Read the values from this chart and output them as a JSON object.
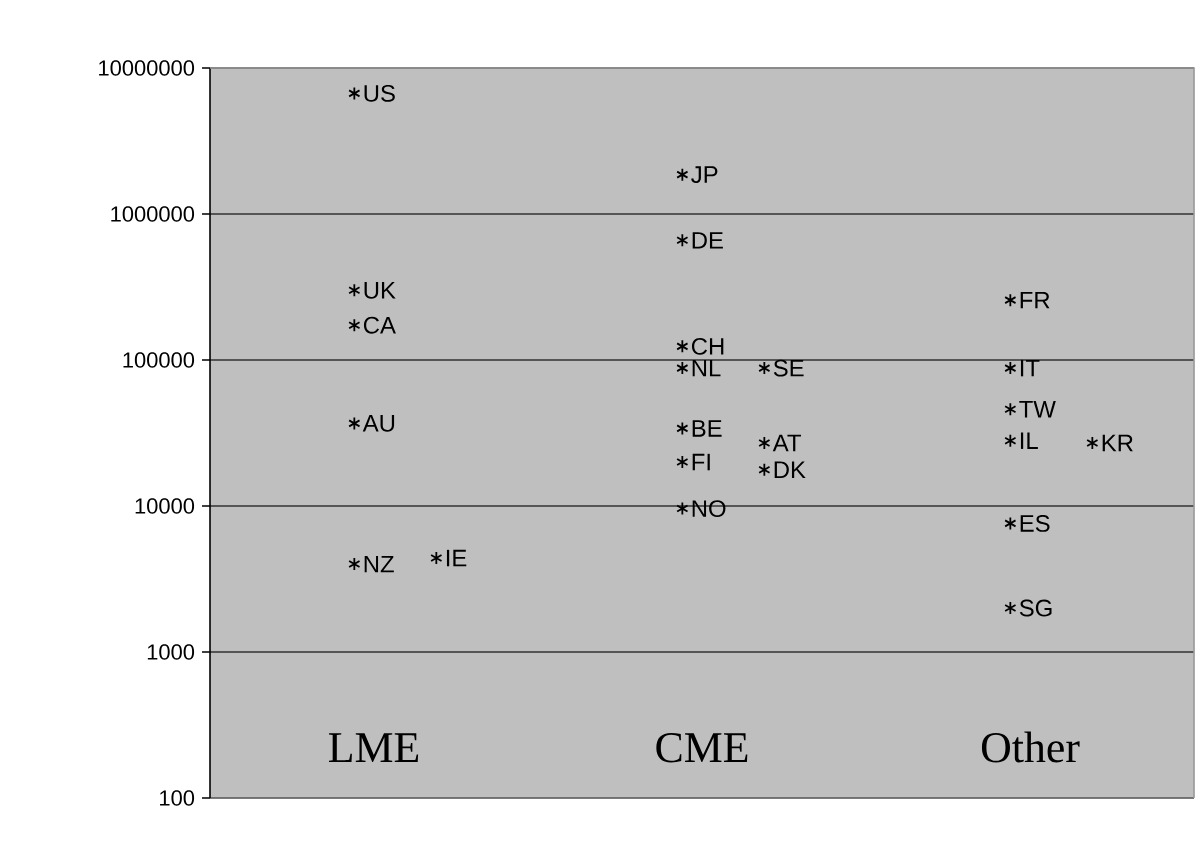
{
  "chart_data": {
    "type": "scatter",
    "log": "y",
    "categories": [
      "LME",
      "CME",
      "Other"
    ],
    "series": [
      {
        "color": "#000000",
        "x": [
          "LME",
          "LME",
          "LME",
          "LME",
          "LME",
          "LME",
          "CME",
          "CME",
          "CME",
          "CME",
          "CME",
          "CME",
          "CME",
          "CME",
          "CME",
          "CME",
          "Other",
          "Other",
          "Other",
          "Other",
          "Other",
          "Other",
          "Other"
        ],
        "values": [
          6700000,
          300000,
          173000,
          36800,
          4000,
          4400,
          1860000,
          660000,
          124000,
          88000,
          88000,
          34000,
          27000,
          20000,
          17700,
          9600,
          257000,
          88000,
          46000,
          28000,
          27000,
          7600,
          2000
        ],
        "value_labels": [
          "US",
          "UK",
          "CA",
          "AU",
          "NZ",
          "IE",
          "JP",
          "DE",
          "CH",
          "NL",
          "SE",
          "BE",
          "AT",
          "FI",
          "DK",
          "NO",
          "FR",
          "IT",
          "TW",
          "IL",
          "KR",
          "ES",
          "SG"
        ]
      }
    ],
    "marker": "cross",
    "ylim": [
      100,
      10000000
    ],
    "yticks": [
      100,
      1000,
      10000,
      100000,
      1000000,
      10000000
    ],
    "grid": "y"
  }
}
